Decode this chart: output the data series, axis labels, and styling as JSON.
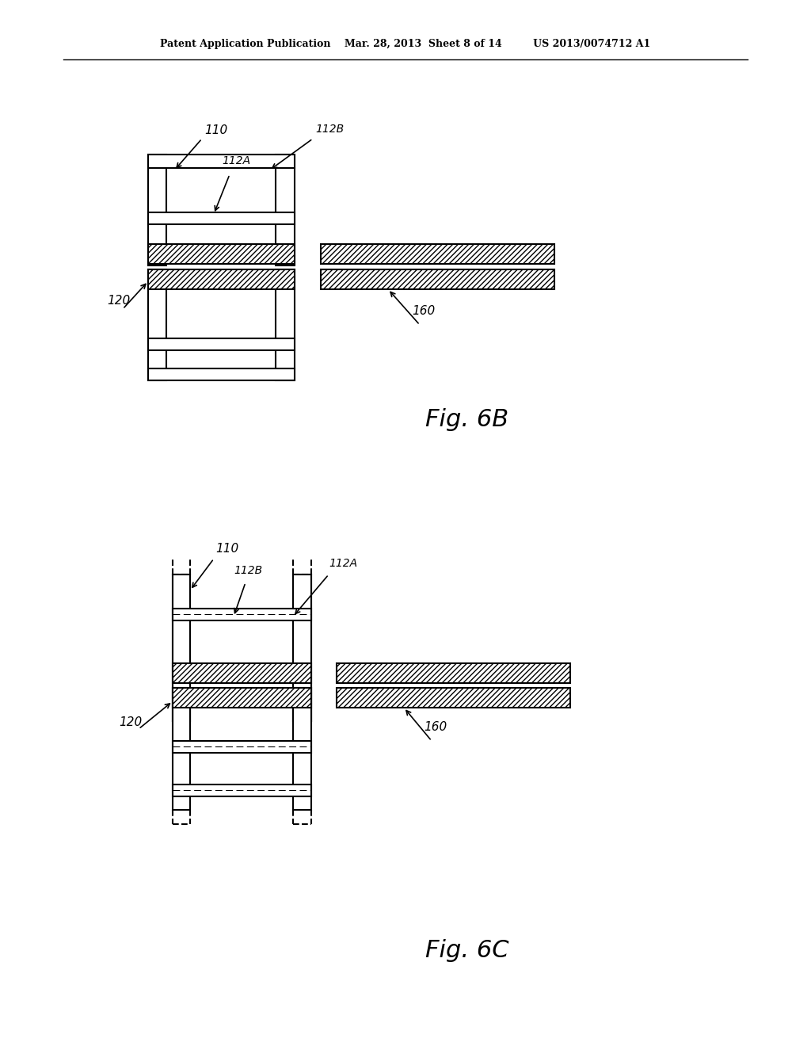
{
  "bg_color": "#ffffff",
  "header_text": "Patent Application Publication    Mar. 28, 2013  Sheet 8 of 14         US 2013/0074712 A1",
  "fig6b_label": "Fig. 6B",
  "fig6c_label": "Fig. 6C",
  "labels": {
    "110_top": "110",
    "112A_top": "112A",
    "112B_top": "112B",
    "120_top": "120",
    "160_top": "160",
    "110_bot": "110",
    "112A_bot": "112A",
    "112B_bot": "112B",
    "120_bot": "120",
    "160_bot": "160"
  }
}
